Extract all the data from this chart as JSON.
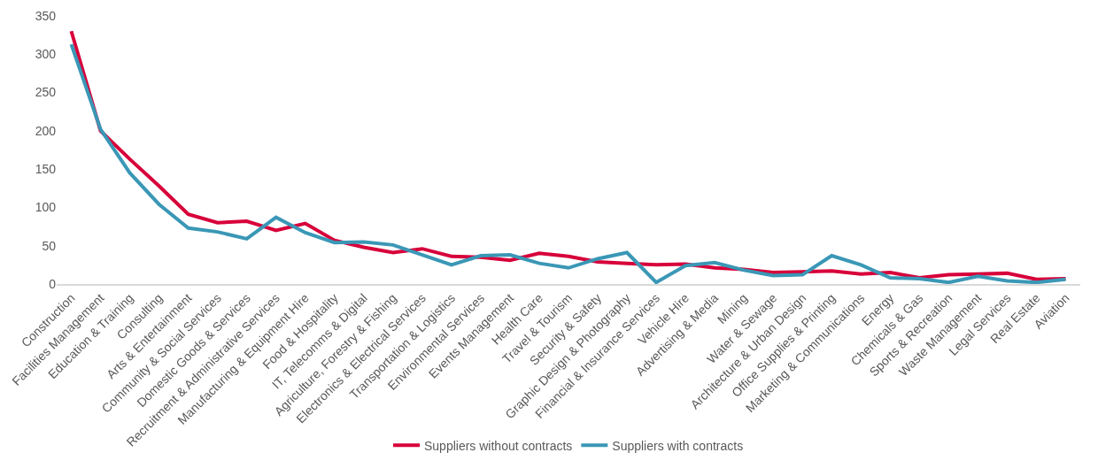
{
  "chart_data": {
    "type": "line",
    "categories": [
      "Construction",
      "Facilities Management",
      "Education & Training",
      "Consulting",
      "Arts & Entertainment",
      "Community & Social Services",
      "Domestic Goods & Services",
      "Recruitment & Administrative Services",
      "Manufacturing & Equipment Hire",
      "Food & Hospitality",
      "IT, Telecomms & Digital",
      "Agriculture, Forestry & Fishing",
      "Electronics & Electrical Services",
      "Transportation & Logistics",
      "Environmental Services",
      "Events Management",
      "Health Care",
      "Travel & Tourism",
      "Security & Safety",
      "Graphic Design & Photography",
      "Financial & Insurance Services",
      "Vehicle Hire",
      "Advertising & Media",
      "Mining",
      "Water & Sewage",
      "Architecture & Urban Design",
      "Office Supplies & Printing",
      "Marketing & Communications",
      "Energy",
      "Chemicals & Gas",
      "Sports & Recreation",
      "Waste Management",
      "Legal Services",
      "Real Estate",
      "Aviation"
    ],
    "series": [
      {
        "name": "Suppliers without contracts",
        "color": "#d7003a",
        "values": [
          330,
          200,
          163,
          128,
          91,
          80,
          82,
          70,
          79,
          57,
          48,
          41,
          46,
          36,
          35,
          31,
          40,
          36,
          29,
          27,
          25,
          26,
          21,
          19,
          15,
          16,
          17,
          13,
          15,
          8,
          12,
          13,
          14,
          6,
          7
        ]
      },
      {
        "name": "Suppliers with contracts",
        "color": "#3a97b6",
        "values": [
          313,
          202,
          145,
          104,
          73,
          68,
          59,
          87,
          67,
          54,
          55,
          51,
          38,
          25,
          37,
          38,
          27,
          21,
          33,
          41,
          2,
          24,
          28,
          18,
          11,
          12,
          37,
          25,
          8,
          7,
          2,
          10,
          4,
          2,
          6
        ]
      }
    ],
    "ylim": [
      0,
      350
    ],
    "yticks": [
      0,
      50,
      100,
      150,
      200,
      250,
      300,
      350
    ],
    "legend": "bottom",
    "marker": "none",
    "line_style": "solid"
  }
}
